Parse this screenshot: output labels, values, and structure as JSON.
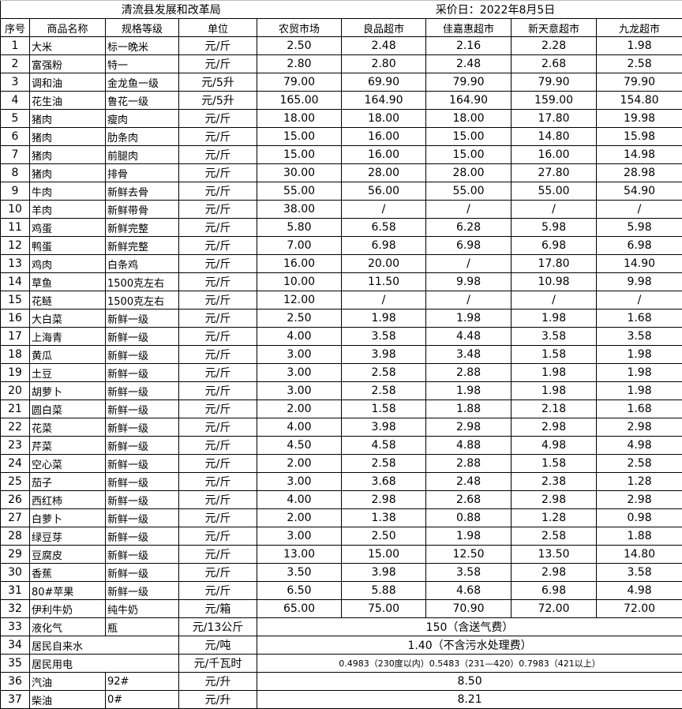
{
  "title": "清流县发展和改革局",
  "date": "采价日：2022年8月5日",
  "headers": [
    "序号",
    "商品名称",
    "规格等级",
    "单位",
    "农贸市场",
    "良品超市",
    "佳嘉惠超市",
    "新天意超市",
    "九龙超市"
  ],
  "rows": [
    {
      "no": "1",
      "name": "大米",
      "spec": "标一晚米",
      "unit": "元/斤",
      "prices": [
        "2.50",
        "2.48",
        "2.16",
        "2.28",
        "1.98"
      ]
    },
    {
      "no": "2",
      "name": "富强粉",
      "spec": "特一",
      "unit": "元/斤",
      "prices": [
        "2.80",
        "2.80",
        "2.48",
        "2.68",
        "2.58"
      ]
    },
    {
      "no": "3",
      "name": "调和油",
      "spec": "金龙鱼一级",
      "unit": "元/5升",
      "prices": [
        "79.00",
        "69.90",
        "79.90",
        "79.90",
        "79.90"
      ]
    },
    {
      "no": "4",
      "name": "花生油",
      "spec": "鲁花一级",
      "unit": "元/5升",
      "prices": [
        "165.00",
        "164.90",
        "164.90",
        "159.00",
        "154.80"
      ]
    },
    {
      "no": "5",
      "name": "猪肉",
      "spec": "瘦肉",
      "unit": "元/斤",
      "prices": [
        "18.00",
        "18.00",
        "18.00",
        "17.80",
        "19.98"
      ]
    },
    {
      "no": "6",
      "name": "猪肉",
      "spec": "肋条肉",
      "unit": "元/斤",
      "prices": [
        "15.00",
        "16.00",
        "15.00",
        "14.80",
        "15.98"
      ]
    },
    {
      "no": "7",
      "name": "猪肉",
      "spec": "前腿肉",
      "unit": "元/斤",
      "prices": [
        "15.00",
        "16.00",
        "15.00",
        "16.00",
        "14.98"
      ]
    },
    {
      "no": "8",
      "name": "猪肉",
      "spec": "排骨",
      "unit": "元/斤",
      "prices": [
        "30.00",
        "28.00",
        "28.00",
        "27.80",
        "28.98"
      ]
    },
    {
      "no": "9",
      "name": "牛肉",
      "spec": "新鲜去骨",
      "unit": "元/斤",
      "prices": [
        "55.00",
        "56.00",
        "55.00",
        "55.00",
        "54.90"
      ]
    },
    {
      "no": "10",
      "name": "羊肉",
      "spec": "新鲜带骨",
      "unit": "元/斤",
      "prices": [
        "38.00",
        "/",
        "/",
        "/",
        "/"
      ]
    },
    {
      "no": "11",
      "name": "鸡蛋",
      "spec": "新鲜完整",
      "unit": "元/斤",
      "prices": [
        "5.80",
        "6.58",
        "6.28",
        "5.98",
        "5.98"
      ]
    },
    {
      "no": "12",
      "name": "鸭蛋",
      "spec": "新鲜完整",
      "unit": "元/斤",
      "prices": [
        "7.00",
        "6.98",
        "6.98",
        "6.98",
        "6.98"
      ]
    },
    {
      "no": "13",
      "name": "鸡肉",
      "spec": "白条鸡",
      "unit": "元/斤",
      "prices": [
        "16.00",
        "20.00",
        "/",
        "17.80",
        "14.90"
      ]
    },
    {
      "no": "14",
      "name": "草鱼",
      "spec": "1500克左右",
      "unit": "元/斤",
      "prices": [
        "10.00",
        "11.50",
        "9.98",
        "10.98",
        "9.98"
      ]
    },
    {
      "no": "15",
      "name": "花鲢",
      "spec": "1500克左右",
      "unit": "元/斤",
      "prices": [
        "12.00",
        "/",
        "/",
        "/",
        "/"
      ]
    },
    {
      "no": "16",
      "name": "大白菜",
      "spec": "新鲜一级",
      "unit": "元/斤",
      "prices": [
        "2.50",
        "1.98",
        "1.98",
        "1.98",
        "1.68"
      ]
    },
    {
      "no": "17",
      "name": "上海青",
      "spec": "新鲜一级",
      "unit": "元/斤",
      "prices": [
        "4.00",
        "3.58",
        "4.48",
        "3.58",
        "3.58"
      ]
    },
    {
      "no": "18",
      "name": "黄瓜",
      "spec": "新鲜一级",
      "unit": "元/斤",
      "prices": [
        "3.00",
        "3.98",
        "3.48",
        "1.58",
        "1.98"
      ]
    },
    {
      "no": "19",
      "name": "土豆",
      "spec": "新鲜一级",
      "unit": "元/斤",
      "prices": [
        "3.00",
        "2.58",
        "2.88",
        "1.98",
        "1.98"
      ]
    },
    {
      "no": "20",
      "name": "胡萝卜",
      "spec": "新鲜一级",
      "unit": "元/斤",
      "prices": [
        "3.00",
        "2.58",
        "1.98",
        "1.98",
        "1.98"
      ]
    },
    {
      "no": "21",
      "name": "圆白菜",
      "spec": "新鲜一级",
      "unit": "元/斤",
      "prices": [
        "2.00",
        "1.58",
        "1.88",
        "2.18",
        "1.68"
      ]
    },
    {
      "no": "22",
      "name": "花菜",
      "spec": "新鲜一级",
      "unit": "元/斤",
      "prices": [
        "4.00",
        "3.98",
        "2.98",
        "2.98",
        "2.98"
      ]
    },
    {
      "no": "23",
      "name": "芹菜",
      "spec": "新鲜一级",
      "unit": "元/斤",
      "prices": [
        "4.50",
        "4.58",
        "4.88",
        "4.98",
        "4.98"
      ]
    },
    {
      "no": "24",
      "name": "空心菜",
      "spec": "新鲜一级",
      "unit": "元/斤",
      "prices": [
        "2.00",
        "2.58",
        "2.88",
        "1.58",
        "2.58"
      ]
    },
    {
      "no": "25",
      "name": "茄子",
      "spec": "新鲜一级",
      "unit": "元/斤",
      "prices": [
        "3.00",
        "3.68",
        "2.48",
        "2.38",
        "1.28"
      ]
    },
    {
      "no": "26",
      "name": "西红柿",
      "spec": "新鲜一级",
      "unit": "元/斤",
      "prices": [
        "4.00",
        "2.98",
        "2.68",
        "2.98",
        "2.98"
      ]
    },
    {
      "no": "27",
      "name": "白萝卜",
      "spec": "新鲜一级",
      "unit": "元/斤",
      "prices": [
        "2.00",
        "1.38",
        "0.88",
        "1.28",
        "0.98"
      ]
    },
    {
      "no": "28",
      "name": "绿豆芽",
      "spec": "新鲜一级",
      "unit": "元/斤",
      "prices": [
        "3.00",
        "2.50",
        "1.98",
        "2.58",
        "1.88"
      ]
    },
    {
      "no": "29",
      "name": "豆腐皮",
      "spec": "新鲜一级",
      "unit": "元/斤",
      "prices": [
        "13.00",
        "15.00",
        "12.50",
        "13.50",
        "14.80"
      ]
    },
    {
      "no": "30",
      "name": "香蕉",
      "spec": "新鲜一级",
      "unit": "元/斤",
      "prices": [
        "3.50",
        "3.98",
        "3.58",
        "2.98",
        "3.58"
      ]
    },
    {
      "no": "31",
      "name": "80#苹果",
      "spec": "新鲜一级",
      "unit": "元/斤",
      "prices": [
        "6.50",
        "5.88",
        "4.68",
        "6.98",
        "4.98"
      ]
    },
    {
      "no": "32",
      "name": "伊利牛奶",
      "spec": "纯牛奶",
      "unit": "元/箱",
      "prices": [
        "65.00",
        "75.00",
        "70.90",
        "72.00",
        "72.00"
      ]
    },
    {
      "no": "33",
      "name": "液化气",
      "spec": "瓶",
      "unit": "元/13公斤",
      "note": "150（含送气费）"
    },
    {
      "no": "34",
      "name": "居民自来水",
      "spec": null,
      "unit": "元/吨",
      "note": "1.40（不含污水处理费）"
    },
    {
      "no": "35",
      "name": "居民用电",
      "spec": null,
      "unit": "元/千瓦时",
      "note": "0.4983（230度以内）0.5483（231—420）0.7983（421以上）",
      "small": true
    },
    {
      "no": "36",
      "name": "汽油",
      "spec": "92#",
      "unit": "元/升",
      "note": "8.50"
    },
    {
      "no": "37",
      "name": "柴油",
      "spec": "0#",
      "unit": "元/升",
      "note": "8.21"
    }
  ]
}
